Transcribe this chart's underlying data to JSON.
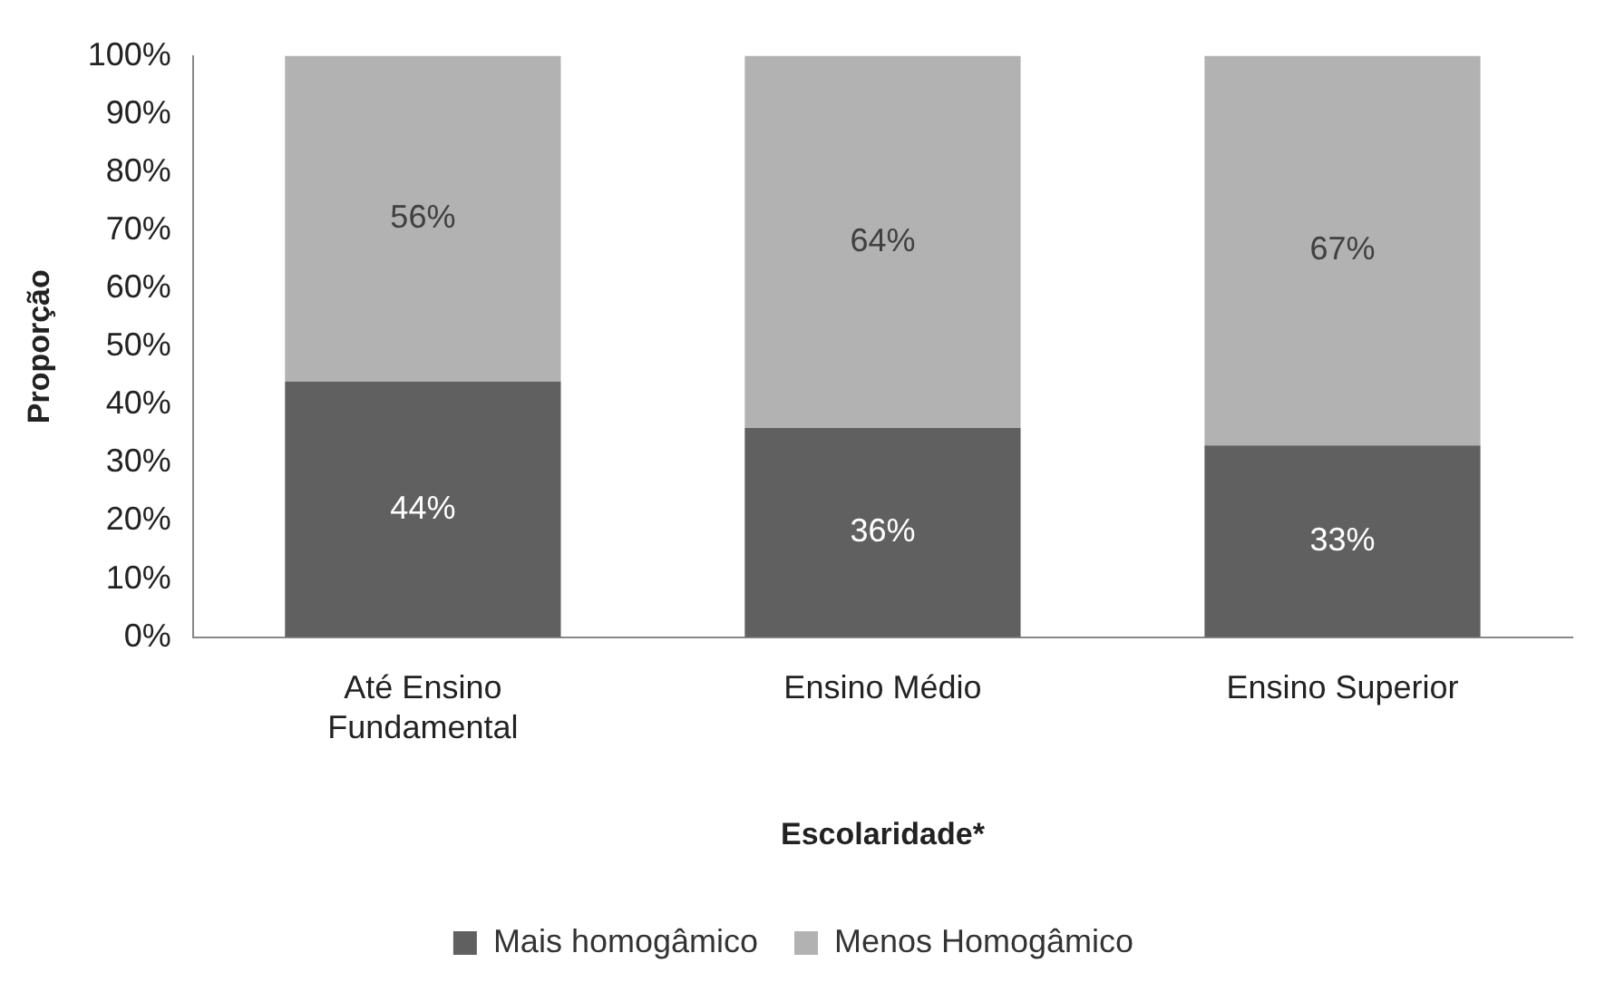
{
  "chart_data": {
    "type": "bar",
    "stacked": true,
    "categories": [
      "Até Ensino Fundamental",
      "Ensino Médio",
      "Ensino Superior"
    ],
    "series": [
      {
        "name": "Mais homogâmico",
        "color": "#606060",
        "values": [
          44,
          36,
          33
        ],
        "value_labels": [
          "44%",
          "36%",
          "33%"
        ]
      },
      {
        "name": "Menos Homogâmico",
        "color": "#b2b2b2",
        "values": [
          56,
          64,
          67
        ],
        "value_labels": [
          "56%",
          "64%",
          "67%"
        ]
      }
    ],
    "xlabel": "Escolaridade*",
    "ylabel": "Proporção",
    "ylim": [
      0,
      100
    ],
    "yticks": [
      {
        "value": 0,
        "label": "0%"
      },
      {
        "value": 10,
        "label": "10%"
      },
      {
        "value": 20,
        "label": "20%"
      },
      {
        "value": 30,
        "label": "30%"
      },
      {
        "value": 40,
        "label": "40%"
      },
      {
        "value": 50,
        "label": "50%"
      },
      {
        "value": 60,
        "label": "60%"
      },
      {
        "value": 70,
        "label": "70%"
      },
      {
        "value": 80,
        "label": "80%"
      },
      {
        "value": 90,
        "label": "90%"
      },
      {
        "value": 100,
        "label": "100%"
      }
    ],
    "grid": false,
    "legend": "bottom"
  }
}
